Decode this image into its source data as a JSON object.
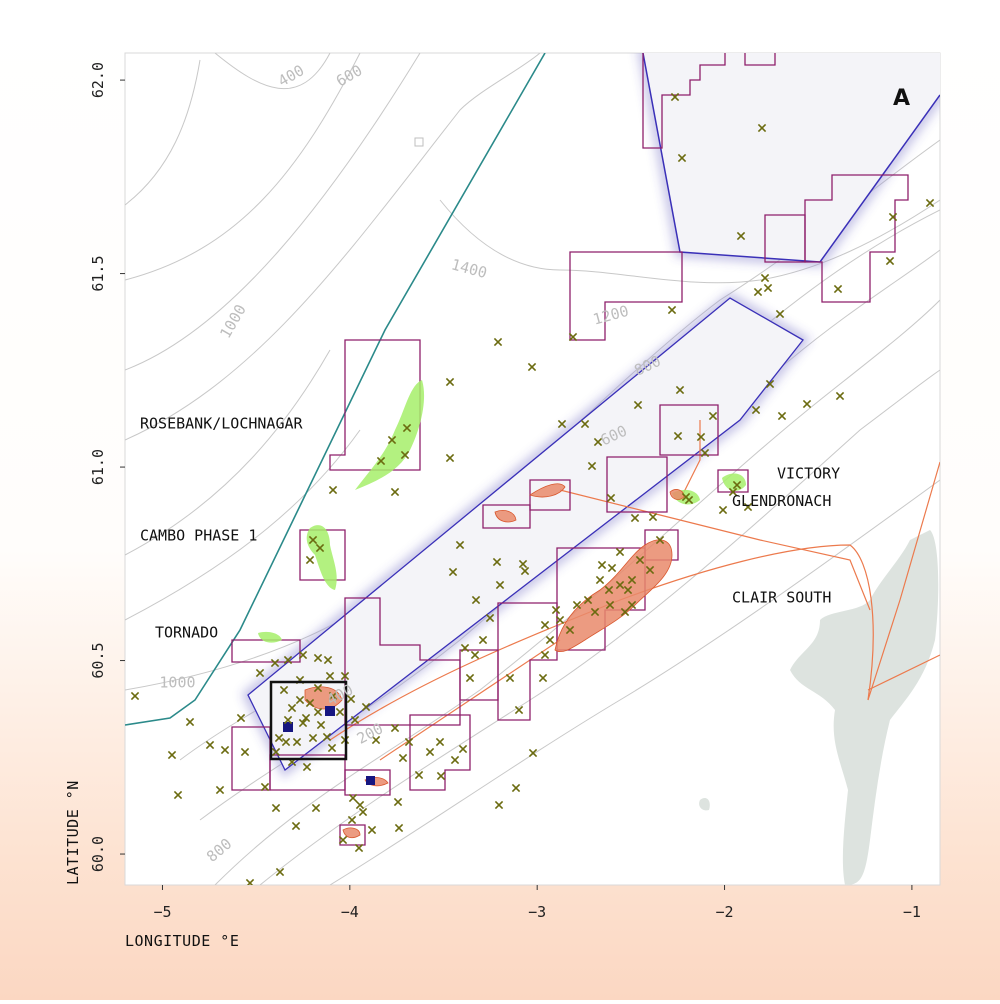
{
  "panel": {
    "label": "A"
  },
  "axes": {
    "xlabel": "LONGITUDE °E",
    "ylabel": "LATITUDE °N",
    "xlim": [
      -5.2,
      -0.85
    ],
    "ylim": [
      59.92,
      62.07
    ],
    "x_ticks": [
      {
        "value": -5,
        "label": "−5"
      },
      {
        "value": -4,
        "label": "−4"
      },
      {
        "value": -3,
        "label": "−3"
      },
      {
        "value": -2,
        "label": "−2"
      },
      {
        "value": -1,
        "label": "−1"
      }
    ],
    "y_ticks": [
      {
        "value": 60.0,
        "label": "60.0"
      },
      {
        "value": 60.5,
        "label": "60.5"
      },
      {
        "value": 61.0,
        "label": "61.0"
      },
      {
        "value": 61.5,
        "label": "61.5"
      },
      {
        "value": 62.0,
        "label": "62.0"
      }
    ]
  },
  "field_labels": [
    {
      "text": "ROSEBANK/LOCHNAGAR",
      "lon": -5.12,
      "lat": 61.1
    },
    {
      "text": "CAMBO PHASE 1",
      "lon": -5.12,
      "lat": 60.81
    },
    {
      "text": "TORNADO",
      "lon": -5.04,
      "lat": 60.56
    },
    {
      "text": "VICTORY",
      "lon": -1.72,
      "lat": 60.97
    },
    {
      "text": "GLENDRONACH",
      "lon": -1.96,
      "lat": 60.9
    },
    {
      "text": "CLAIR SOUTH",
      "lon": -1.96,
      "lat": 60.65
    }
  ],
  "contour_labels": [
    {
      "text": "400",
      "lon": -4.3,
      "lat": 62.0,
      "angle": -30
    },
    {
      "text": "600",
      "lon": -3.99,
      "lat": 62.0,
      "angle": -30
    },
    {
      "text": "1000",
      "lon": -4.6,
      "lat": 61.37,
      "angle": -60
    },
    {
      "text": "1400",
      "lon": -3.37,
      "lat": 61.5,
      "angle": 15
    },
    {
      "text": "1200",
      "lon": -2.6,
      "lat": 61.38,
      "angle": -15
    },
    {
      "text": "800",
      "lon": -2.4,
      "lat": 61.25,
      "angle": -25
    },
    {
      "text": "600",
      "lon": -2.58,
      "lat": 61.07,
      "angle": -25
    },
    {
      "text": "1000",
      "lon": -4.92,
      "lat": 60.43,
      "angle": 0
    },
    {
      "text": "400",
      "lon": -4.04,
      "lat": 60.4,
      "angle": -28
    },
    {
      "text": "200",
      "lon": -3.88,
      "lat": 60.3,
      "angle": -28
    },
    {
      "text": "800",
      "lon": -4.68,
      "lat": 60.0,
      "angle": -40
    }
  ],
  "colors": {
    "licence_block": "#8e1f6b",
    "well_marker": "#6b6b10",
    "gas_field": "#a6ee6a",
    "oil_field": "#e9896b",
    "pipeline": "#ec7a4d",
    "protected_area": "#3a30b8",
    "boundary_line": "#2b8a8a",
    "land": "#dde3df",
    "contour": "#c8c8c8"
  },
  "legend_icons": [
    "well-cross-marker",
    "licence-block-outline",
    "pipeline-line",
    "protected-area-band"
  ]
}
